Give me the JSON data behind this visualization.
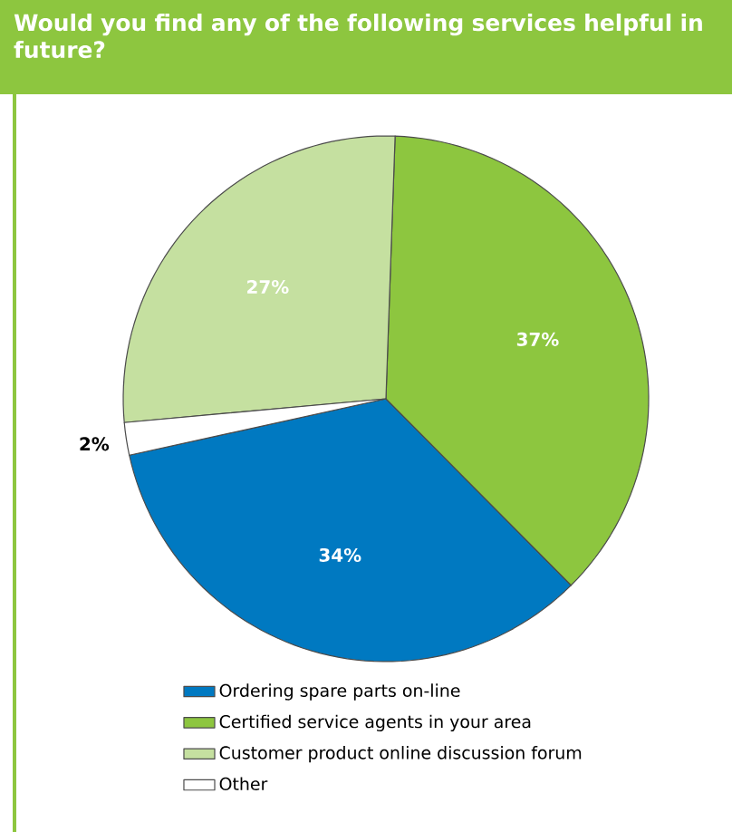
{
  "chart_data": {
    "type": "pie",
    "title": "Would you find any of the following services helpful in future?",
    "categories": [
      "Ordering spare parts on-line",
      "Certified service agents in your area",
      "Customer product online discussion forum",
      "Other"
    ],
    "values": [
      34,
      37,
      27,
      2
    ],
    "value_labels": [
      "34%",
      "37%",
      "27%",
      "2%"
    ],
    "colors": [
      "#0079c1",
      "#8dc63f",
      "#c5e0a0",
      "#ffffff"
    ],
    "legend": "bottom"
  }
}
